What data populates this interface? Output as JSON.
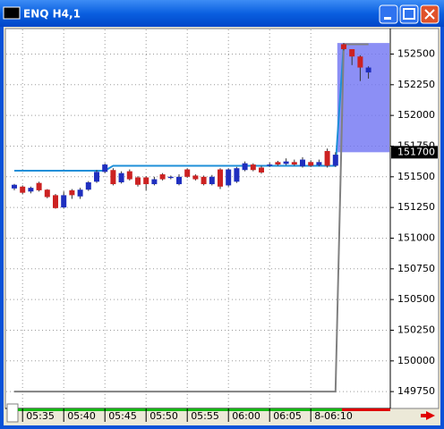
{
  "window": {
    "title": "ENQ H4,1"
  },
  "chart_data": {
    "type": "candlestick",
    "categories": [
      null,
      "05:35",
      null,
      null,
      null,
      null,
      "05:40",
      null,
      null,
      null,
      null,
      "05:45",
      null,
      null,
      null,
      null,
      "05:50",
      null,
      null,
      null,
      null,
      "05:55",
      null,
      null,
      null,
      null,
      "06:00",
      null,
      null,
      null,
      null,
      "06:05",
      null,
      null,
      null,
      null,
      "8-06:10",
      null,
      null,
      null,
      null,
      null,
      null,
      null
    ],
    "open": [
      151405,
      151420,
      151380,
      151450,
      151395,
      151350,
      151250,
      151390,
      151340,
      151395,
      151460,
      151540,
      151555,
      151455,
      151545,
      151495,
      151495,
      151440,
      151520,
      151490,
      151440,
      151560,
      151510,
      151500,
      151440,
      151560,
      151430,
      151460,
      151555,
      151600,
      151575,
      151590,
      151620,
      151605,
      151620,
      151585,
      151620,
      151595,
      151710,
      151590,
      152580,
      152540,
      152480,
      152350
    ],
    "high": [
      151442,
      151430,
      151420,
      151460,
      151400,
      151360,
      151380,
      151400,
      151410,
      151465,
      151555,
      151610,
      151570,
      151545,
      151560,
      151505,
      151505,
      151500,
      151530,
      151510,
      151520,
      151570,
      151520,
      151510,
      151515,
      151570,
      151570,
      151580,
      151625,
      151610,
      151590,
      151615,
      151630,
      151650,
      151640,
      151660,
      151635,
      151640,
      151730,
      151700,
      152590,
      152540,
      152490,
      152400
    ],
    "low": [
      151390,
      151360,
      151365,
      151380,
      151325,
      151240,
      151245,
      151320,
      151320,
      151385,
      151450,
      151530,
      151430,
      151445,
      151470,
      151420,
      151390,
      151430,
      151470,
      151480,
      151430,
      151490,
      151470,
      151430,
      151430,
      151400,
      151420,
      151450,
      151545,
      151545,
      151525,
      151580,
      151590,
      151595,
      151590,
      151575,
      151580,
      151585,
      151575,
      151580,
      152530,
      152410,
      152280,
      152300
    ],
    "close": [
      151435,
      151370,
      151410,
      151390,
      151335,
      151245,
      151350,
      151350,
      151395,
      151455,
      151540,
      151600,
      151440,
      151530,
      151480,
      151435,
      151440,
      151480,
      151480,
      151500,
      151500,
      151500,
      151480,
      151440,
      151500,
      151420,
      151560,
      151570,
      151610,
      151555,
      151535,
      151600,
      151600,
      151625,
      151600,
      151640,
      151590,
      151620,
      151590,
      151680,
      152540,
      152480,
      152390,
      152390
    ],
    "up_color": "#1f2fbf",
    "down_color": "#cc2222",
    "series": [
      {
        "color": "#1e8fd8",
        "values": [
          151550,
          151550,
          151550,
          151550,
          151550,
          151550,
          151550,
          151550,
          151550,
          151550,
          151550,
          151550,
          151590,
          151590,
          151590,
          151590,
          151590,
          151590,
          151590,
          151590,
          151590,
          151590,
          151590,
          151590,
          151590,
          151590,
          151590,
          151590,
          151590,
          151590,
          151590,
          151590,
          151590,
          151590,
          151590,
          151590,
          151590,
          151590,
          151590,
          151590,
          152580,
          152580,
          152580,
          152580
        ]
      },
      {
        "color": "#808080",
        "values": [
          149750,
          149750,
          149750,
          149750,
          149750,
          149750,
          149750,
          149750,
          149750,
          149750,
          149750,
          149750,
          149750,
          149750,
          149750,
          149750,
          149750,
          149750,
          149750,
          149750,
          149750,
          149750,
          149750,
          149750,
          149750,
          149750,
          149750,
          149750,
          149750,
          149750,
          149750,
          149750,
          149750,
          149750,
          149750,
          149750,
          149750,
          149750,
          149750,
          149750,
          152580,
          152580,
          152580,
          152580
        ]
      }
    ],
    "zone": {
      "color": "#6f73f2",
      "from": 151700,
      "to": 152590
    },
    "current_price": 151700,
    "ylim": [
      149620,
      152700
    ],
    "yticks": [
      149750,
      150000,
      150250,
      150500,
      150750,
      151000,
      151250,
      151500,
      151750,
      152000,
      152250,
      152500
    ],
    "grid": true
  }
}
